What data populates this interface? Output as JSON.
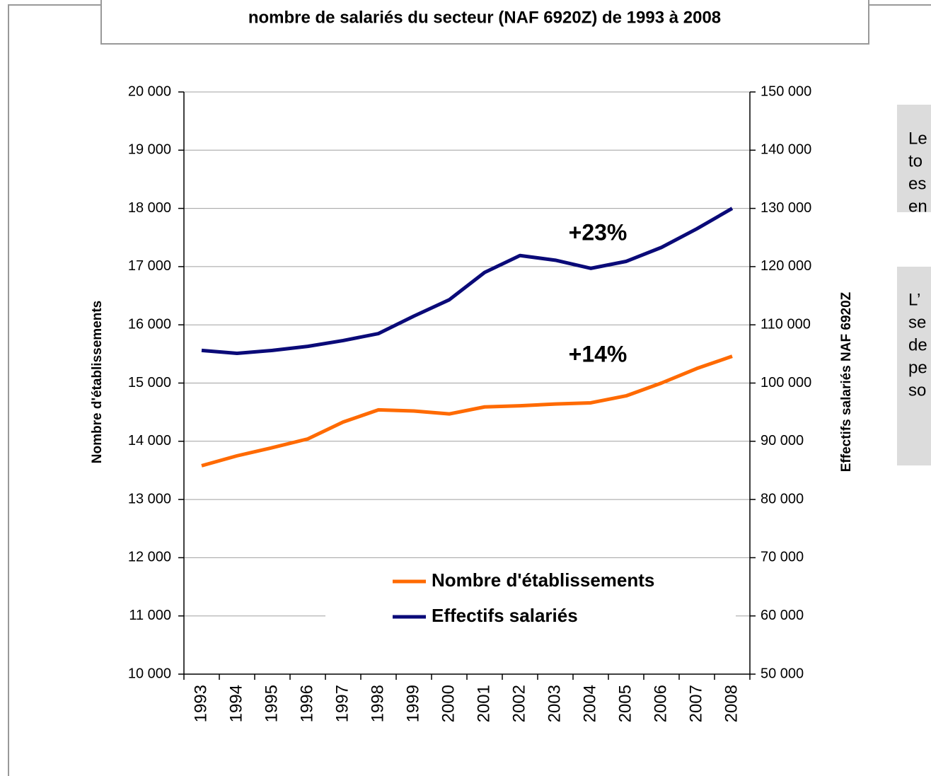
{
  "chart_data": {
    "type": "line",
    "title": "nombre de salariés du secteur (NAF 6920Z) de 1993 à 2008",
    "ylabel": "Nombre d'établissements",
    "y2label": "Effectifs salariés NAF 6920Z",
    "categories": [
      "1993",
      "1994",
      "1995",
      "1996",
      "1997",
      "1998",
      "1999",
      "2000",
      "2001",
      "2002",
      "2003",
      "2004",
      "2005",
      "2006",
      "2007",
      "2008"
    ],
    "series": [
      {
        "name": "Nombre d'établissements",
        "color": "#ff6a00",
        "axis": "y",
        "values": [
          13580,
          13750,
          13890,
          14040,
          14330,
          14540,
          14520,
          14470,
          14590,
          14610,
          14640,
          14660,
          14780,
          15000,
          15250,
          15460
        ]
      },
      {
        "name": "Effectifs salariés",
        "color": "#0a0a78",
        "axis": "y2",
        "values": [
          105600,
          105100,
          105600,
          106300,
          107300,
          108500,
          111500,
          114300,
          119000,
          121900,
          121100,
          119700,
          120900,
          123300,
          126500,
          130000
        ]
      }
    ],
    "annotations": [
      "+14%",
      "+23%"
    ],
    "ylim": [
      10000,
      20000
    ],
    "yticks": [
      {
        "value": 10000,
        "label": "10 000"
      },
      {
        "value": 11000,
        "label": "11 000"
      },
      {
        "value": 12000,
        "label": "12 000"
      },
      {
        "value": 13000,
        "label": "13 000"
      },
      {
        "value": 14000,
        "label": "14 000"
      },
      {
        "value": 15000,
        "label": "15 000"
      },
      {
        "value": 16000,
        "label": "16 000"
      },
      {
        "value": 17000,
        "label": "17 000"
      },
      {
        "value": 18000,
        "label": "18 000"
      },
      {
        "value": 19000,
        "label": "19 000"
      },
      {
        "value": 20000,
        "label": "20 000"
      }
    ],
    "y2lim": [
      50000,
      150000
    ],
    "y2ticks": [
      {
        "value": 50000,
        "label": "50 000"
      },
      {
        "value": 60000,
        "label": "60 000"
      },
      {
        "value": 70000,
        "label": "70 000"
      },
      {
        "value": 80000,
        "label": "80 000"
      },
      {
        "value": 90000,
        "label": "90 000"
      },
      {
        "value": 100000,
        "label": "100 000"
      },
      {
        "value": 110000,
        "label": "110 000"
      },
      {
        "value": 120000,
        "label": "120 000"
      },
      {
        "value": 130000,
        "label": "130 000"
      },
      {
        "value": 140000,
        "label": "140 000"
      },
      {
        "value": 150000,
        "label": "150 000"
      }
    ],
    "grid": true,
    "legend": "lower right"
  },
  "side_notes": [
    [
      "Le",
      "to",
      "es",
      "en"
    ],
    [
      "L’",
      "se",
      "de",
      "pe",
      "so"
    ]
  ]
}
